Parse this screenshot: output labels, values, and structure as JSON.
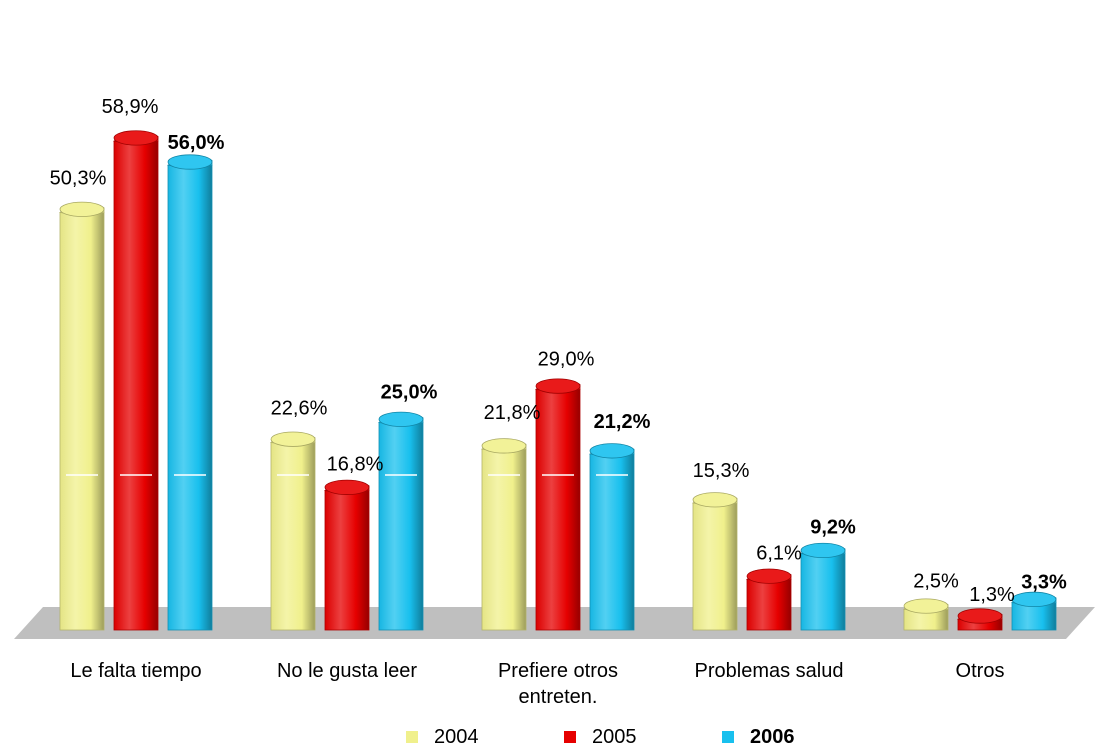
{
  "chart_data": {
    "type": "bar",
    "title": "",
    "xlabel": "",
    "ylabel": "",
    "ylim": [
      0,
      70
    ],
    "grid": false,
    "legend_position": "bottom",
    "categories": [
      [
        "Le falta tiempo"
      ],
      [
        "No le gusta leer"
      ],
      [
        "Prefiere otros",
        "entreten."
      ],
      [
        "Problemas salud"
      ],
      [
        "Otros"
      ]
    ],
    "series": [
      {
        "name": "2004",
        "color": "#f0f08c",
        "values": [
          50.3,
          22.6,
          21.8,
          15.3,
          2.5
        ],
        "labels": [
          "50,3%",
          "22,6%",
          "21,8%",
          "15,3%",
          "2,5%"
        ],
        "bold": false
      },
      {
        "name": "2005",
        "color": "#e60000",
        "values": [
          58.9,
          16.8,
          29.0,
          6.1,
          1.3
        ],
        "labels": [
          "58,9%",
          "16,8%",
          "29,0%",
          "6,1%",
          "1,3%"
        ],
        "bold": false
      },
      {
        "name": "2006",
        "color": "#18c0ee",
        "values": [
          56.0,
          25.0,
          21.2,
          9.2,
          3.3
        ],
        "labels": [
          "56,0%",
          "25,0%",
          "21,2%",
          "9,2%",
          "3,3%"
        ],
        "bold": true
      }
    ]
  }
}
